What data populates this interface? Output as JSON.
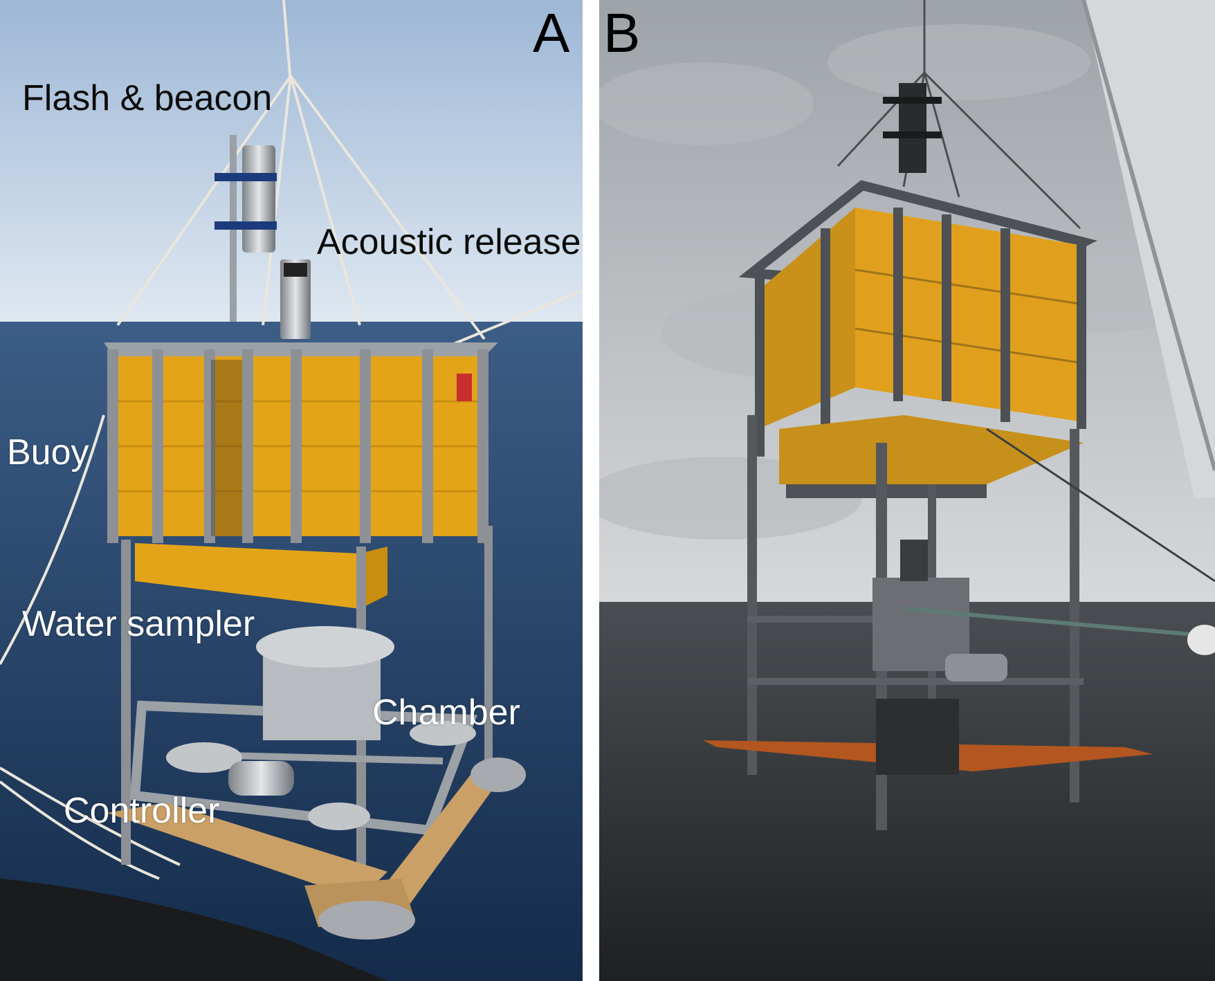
{
  "panels": {
    "a": {
      "letter": "A",
      "labels": {
        "flash_beacon": "Flash & beacon",
        "acoustic_release": "Acoustic release",
        "buoy": "Buoy",
        "water_sampler": "Water sampler",
        "chamber": "Chamber",
        "controller": "Controller"
      }
    },
    "b": {
      "letter": "B"
    }
  },
  "colors": {
    "panel_a_sky": "#bcd0e6",
    "panel_a_sea": "#1f3d63",
    "panel_b_sky": "#c9cbcd",
    "panel_b_sea": "#2e3133",
    "buoyancy_yellow": "#e9a81a",
    "steel": "#8d9196",
    "wood": "#c9995c",
    "orange_frame": "#b4561f"
  }
}
